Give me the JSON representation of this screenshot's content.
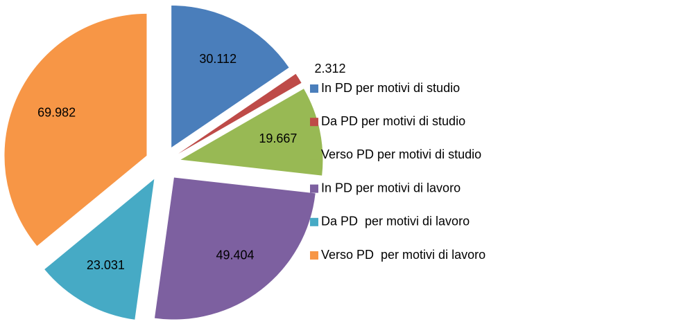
{
  "chart_data": {
    "type": "pie",
    "categories": [
      "In PD per motivi di studio",
      "Da PD per motivi di studio",
      "Verso PD per motivi di studio",
      "In PD per motivi di lavoro",
      "Da PD  per motivi di lavoro",
      "Verso PD  per motivi di lavoro"
    ],
    "values": [
      30112,
      2312,
      19667,
      49404,
      23031,
      69982
    ],
    "value_labels": [
      "30.112",
      "2.312",
      "19.667",
      "49.404",
      "23.031",
      "69.982"
    ],
    "colors": [
      "#4a7ebb",
      "#be4b48",
      "#98b954",
      "#7d60a0",
      "#46aac5",
      "#f79646"
    ],
    "legend": "right"
  }
}
